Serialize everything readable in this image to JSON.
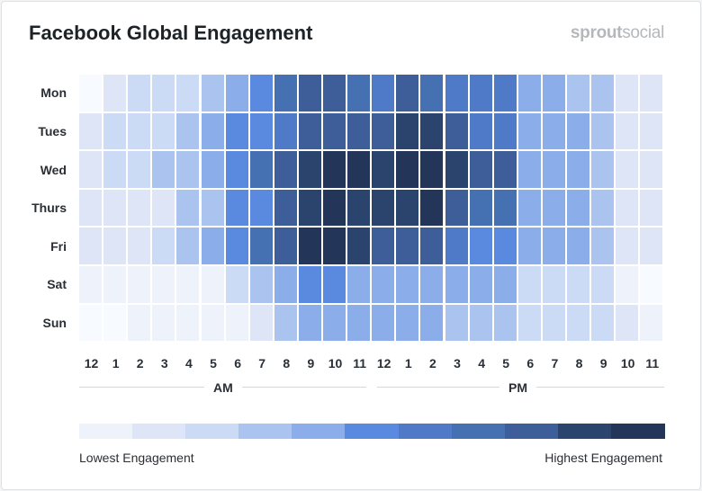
{
  "title": "Facebook Global Engagement",
  "logo": {
    "part1": "sprout",
    "part2": "social"
  },
  "chart_data": {
    "type": "heatmap",
    "title": "Facebook Global Engagement",
    "rows": [
      "Mon",
      "Tues",
      "Wed",
      "Thurs",
      "Fri",
      "Sat",
      "Sun"
    ],
    "columns": [
      "12",
      "1",
      "2",
      "3",
      "4",
      "5",
      "6",
      "7",
      "8",
      "9",
      "10",
      "11",
      "12",
      "1",
      "2",
      "3",
      "4",
      "5",
      "6",
      "7",
      "8",
      "9",
      "10",
      "11"
    ],
    "period_labels": [
      "AM",
      "PM"
    ],
    "scale_levels": 11,
    "values": [
      [
        0,
        2,
        3,
        3,
        3,
        4,
        5,
        6,
        8,
        9,
        9,
        8,
        7,
        9,
        8,
        7,
        7,
        7,
        5,
        5,
        4,
        4,
        2,
        2
      ],
      [
        2,
        3,
        3,
        3,
        4,
        5,
        6,
        6,
        7,
        9,
        9,
        9,
        9,
        10,
        10,
        9,
        7,
        7,
        5,
        5,
        5,
        4,
        2,
        2
      ],
      [
        2,
        3,
        3,
        4,
        4,
        5,
        6,
        8,
        9,
        10,
        11,
        11,
        10,
        11,
        11,
        10,
        9,
        9,
        5,
        5,
        5,
        4,
        2,
        2
      ],
      [
        2,
        2,
        2,
        2,
        4,
        4,
        6,
        6,
        9,
        10,
        11,
        10,
        10,
        10,
        11,
        9,
        8,
        8,
        5,
        5,
        5,
        4,
        2,
        2
      ],
      [
        2,
        2,
        2,
        3,
        4,
        5,
        6,
        8,
        9,
        11,
        11,
        10,
        9,
        9,
        9,
        7,
        6,
        6,
        5,
        5,
        5,
        4,
        2,
        2
      ],
      [
        1,
        1,
        1,
        1,
        1,
        1,
        3,
        4,
        5,
        6,
        6,
        5,
        5,
        5,
        5,
        5,
        5,
        5,
        3,
        3,
        3,
        3,
        1,
        0
      ],
      [
        0,
        0,
        1,
        1,
        1,
        1,
        1,
        2,
        4,
        5,
        5,
        5,
        5,
        5,
        5,
        4,
        4,
        4,
        3,
        3,
        3,
        3,
        2,
        1
      ]
    ],
    "colors": [
      "#f7faff",
      "#eef2fb",
      "#dde5f7",
      "#cbdaf5",
      "#abc3ef",
      "#8badea",
      "#5a89e0",
      "#4f7ac8",
      "#4570b2",
      "#3d5e98",
      "#2b446e",
      "#233659"
    ],
    "legend": {
      "low_label": "Lowest Engagement",
      "high_label": "Highest Engagement",
      "placement": "bottom"
    }
  }
}
